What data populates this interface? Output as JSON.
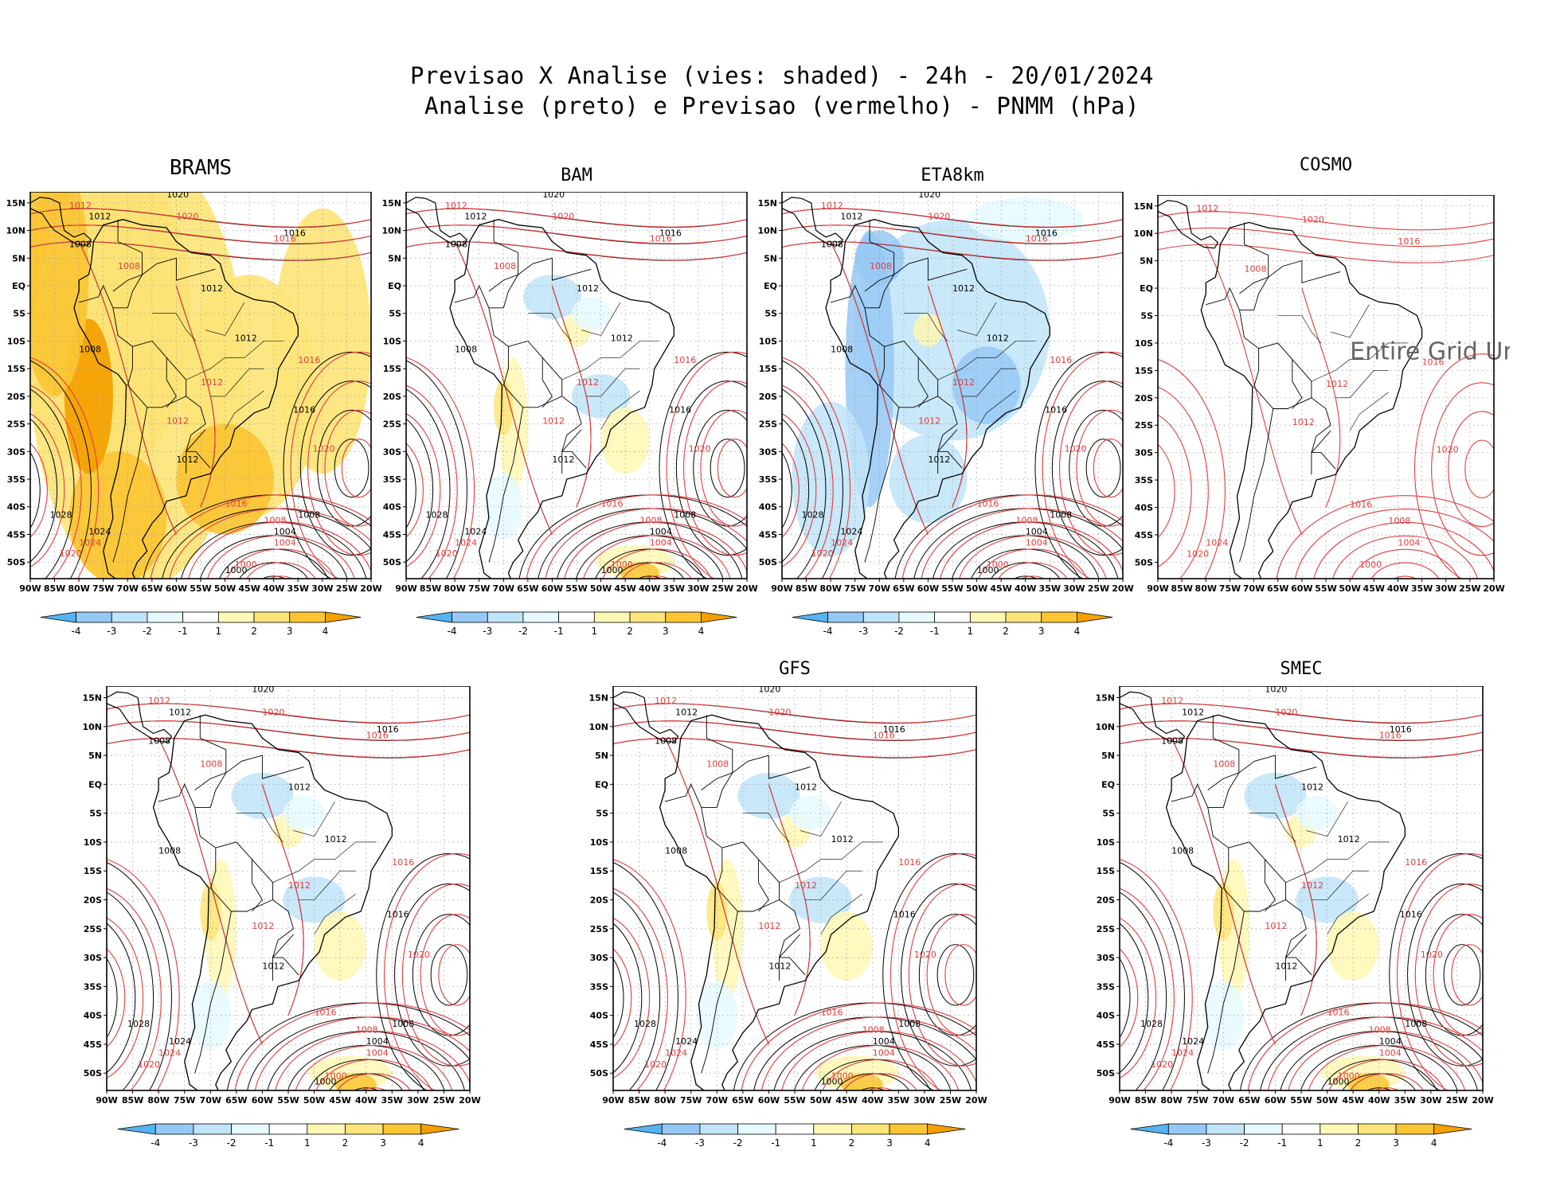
{
  "header": {
    "title_line1": "Previsao X Analise (vies: shaded) - 24h - 20/01/2024",
    "title_line2": "Analise (preto) e Previsao (vermelho) - PNMM (hPa)"
  },
  "axes": {
    "lat_labels": [
      "15N",
      "10N",
      "5N",
      "EQ",
      "5S",
      "10S",
      "15S",
      "20S",
      "25S",
      "30S",
      "35S",
      "40S",
      "45S",
      "50S"
    ],
    "lon_labels": [
      "90W",
      "85W",
      "80W",
      "75W",
      "70W",
      "65W",
      "60W",
      "55W",
      "50W",
      "45W",
      "40W",
      "35W",
      "30W",
      "25W",
      "20W"
    ]
  },
  "colorbar": {
    "labels": [
      "-4",
      "-3",
      "-2",
      "-1",
      "1",
      "2",
      "3",
      "4"
    ],
    "colors": [
      "#55b4f0",
      "#96c8f5",
      "#c0e4f8",
      "#e6faff",
      "#ffffff",
      "#fff7b4",
      "#fde57a",
      "#fbc534",
      "#f5a000"
    ]
  },
  "colors": {
    "analysis": "#000000",
    "forecast": "#e03c3c",
    "grid": "#a0a0a0"
  },
  "panels": [
    {
      "id": "brams",
      "label": "BRAMS",
      "bias": "warm",
      "note": ""
    },
    {
      "id": "bam",
      "label": "BAM",
      "bias": "mixed",
      "note": ""
    },
    {
      "id": "eta8km",
      "label": "ETA8km",
      "bias": "cold",
      "note": ""
    },
    {
      "id": "cosmo",
      "label": "COSMO",
      "bias": "none",
      "note": "Entire Grid Und"
    },
    {
      "id": "ensemble",
      "label": "",
      "bias": "mixed",
      "note": ""
    },
    {
      "id": "gfs",
      "label": "GFS",
      "bias": "mixed",
      "note": ""
    },
    {
      "id": "smec",
      "label": "SMEC",
      "bias": "mixed",
      "note": ""
    }
  ],
  "isobar_labels": {
    "analysis": [
      "1020",
      "1012",
      "1008",
      "1016",
      "1012",
      "1012",
      "1008",
      "1016",
      "1004",
      "1000",
      "1024",
      "1028",
      "1012",
      "1008"
    ],
    "forecast": [
      "1020",
      "1016",
      "1012",
      "1008",
      "1016",
      "1020",
      "1012",
      "1024",
      "1020",
      "1016",
      "1008",
      "1004",
      "1012",
      "1000"
    ]
  }
}
